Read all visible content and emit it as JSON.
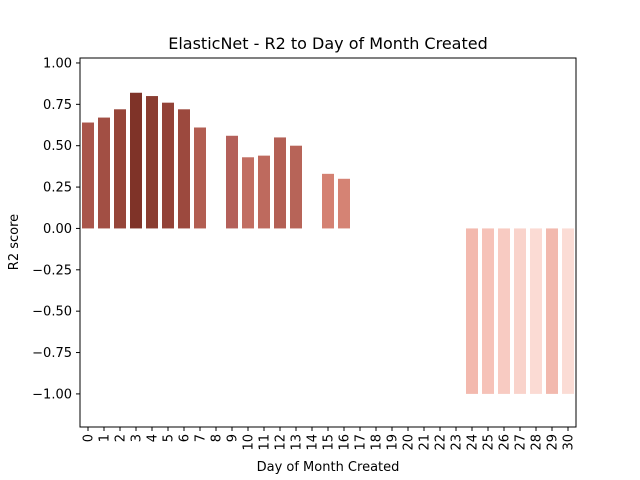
{
  "chart_data": {
    "type": "bar",
    "title": "ElasticNet - R2 to Day of Month Created",
    "xlabel": "Day of Month Created",
    "ylabel": "R2 score",
    "ylim": [
      -1.2,
      1.03
    ],
    "yticks": [
      1.0,
      0.75,
      0.5,
      0.25,
      0.0,
      -0.25,
      -0.5,
      -0.75,
      -1.0
    ],
    "ytick_labels": [
      "1.00",
      "0.75",
      "0.50",
      "0.25",
      "0.00",
      "−0.25",
      "−0.50",
      "−0.75",
      "−1.00"
    ],
    "categories": [
      "0",
      "1",
      "2",
      "3",
      "4",
      "5",
      "6",
      "7",
      "8",
      "9",
      "10",
      "11",
      "12",
      "13",
      "14",
      "15",
      "16",
      "17",
      "18",
      "19",
      "20",
      "21",
      "22",
      "23",
      "24",
      "25",
      "26",
      "27",
      "28",
      "29",
      "30"
    ],
    "values": [
      0.64,
      0.67,
      0.72,
      0.82,
      0.8,
      0.76,
      0.72,
      0.61,
      0.0,
      0.56,
      0.43,
      0.44,
      0.55,
      0.5,
      0.0,
      0.33,
      0.3,
      0.0,
      0.0,
      0.0,
      0.0,
      0.0,
      0.0,
      0.0,
      -1.0,
      -1.0,
      -1.0,
      -1.0,
      -1.0,
      -1.0,
      -1.0
    ],
    "colors": [
      "#a9554a",
      "#a24f44",
      "#964539",
      "#7f3328",
      "#8a3d31",
      "#934237",
      "#9c493e",
      "#b25e52",
      "#b8665a",
      "#b4605a",
      "#c16e62",
      "#be6a5e",
      "#b36055",
      "#b76458",
      "#c77567",
      "#d48172",
      "#d58374",
      "#e8ab9c",
      "#e8ab9c",
      "#e8ab9c",
      "#e8ab9c",
      "#e8ab9c",
      "#e8ab9c",
      "#e8ab9c",
      "#f3b9ae",
      "#f6c2b8",
      "#f8cbc2",
      "#f9d3cb",
      "#fbdbd4",
      "#f2b9ae",
      "#fbdcd5"
    ]
  }
}
